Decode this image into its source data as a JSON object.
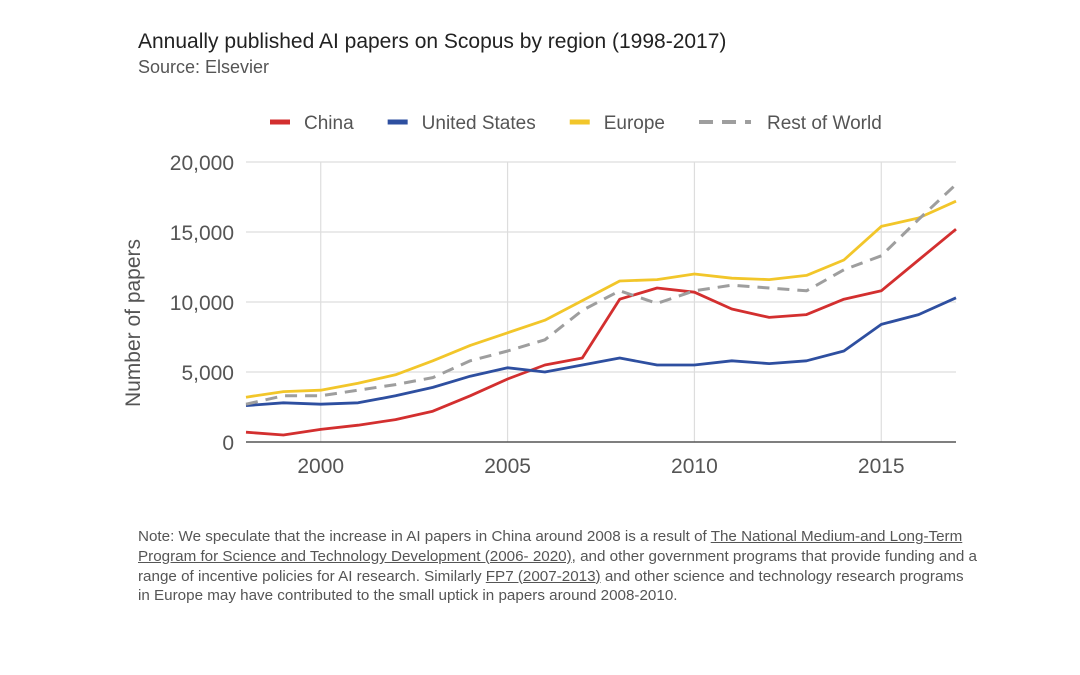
{
  "header": {
    "title": "Annually published AI papers on Scopus by region (1998-2017)",
    "source": "Source: Elsevier"
  },
  "chart_data": {
    "type": "line",
    "title": "Annually published AI papers on Scopus by region (1998-2017)",
    "subtitle": "Source: Elsevier",
    "xlabel": "",
    "ylabel": "Number of papers",
    "x": [
      1998,
      1999,
      2000,
      2001,
      2002,
      2003,
      2004,
      2005,
      2006,
      2007,
      2008,
      2009,
      2010,
      2011,
      2012,
      2013,
      2014,
      2015,
      2016,
      2017
    ],
    "xlim": [
      1998,
      2017
    ],
    "ylim": [
      0,
      20000
    ],
    "xticks": [
      2000,
      2005,
      2010,
      2015
    ],
    "xtick_labels": [
      "2000",
      "2005",
      "2010",
      "2015"
    ],
    "yticks": [
      0,
      5000,
      10000,
      15000,
      20000
    ],
    "ytick_labels": [
      "0",
      "5,000",
      "10,000",
      "15,000",
      "20,000"
    ],
    "grid": true,
    "legend_position": "top",
    "series": [
      {
        "name": "China",
        "color": "#d32f2f",
        "dash": "solid",
        "values": [
          700,
          500,
          900,
          1200,
          1600,
          2200,
          3300,
          4500,
          5500,
          6000,
          10200,
          11000,
          10700,
          9500,
          8900,
          9100,
          10200,
          10800,
          13000,
          15200
        ]
      },
      {
        "name": "United States",
        "color": "#2e4fa0",
        "dash": "solid",
        "values": [
          2600,
          2800,
          2700,
          2800,
          3300,
          3900,
          4700,
          5300,
          5000,
          5500,
          6000,
          5500,
          5500,
          5800,
          5600,
          5800,
          6500,
          8400,
          9100,
          10300
        ]
      },
      {
        "name": "Europe",
        "color": "#f2c62a",
        "dash": "solid",
        "values": [
          3200,
          3600,
          3700,
          4200,
          4800,
          5800,
          6900,
          7800,
          8700,
          10100,
          11500,
          11600,
          12000,
          11700,
          11600,
          11900,
          13000,
          15400,
          16000,
          17200
        ]
      },
      {
        "name": "Rest of World",
        "color": "#9e9e9e",
        "dash": "dashed",
        "values": [
          2700,
          3300,
          3300,
          3700,
          4100,
          4600,
          5800,
          6500,
          7300,
          9400,
          10800,
          9900,
          10800,
          11200,
          11000,
          10800,
          12300,
          13300,
          15900,
          18400
        ]
      }
    ]
  },
  "note": {
    "pre": "Note: We speculate that the increase in AI papers in China around 2008 is a result of ",
    "link1": "The National Medium-and Long-Term Program for Science and Technology Development (2006- 2020)",
    "mid": ", and other government programs that provide funding and a range of incentive policies for AI research. Similarly ",
    "link2": "FP7 (2007-2013)",
    "post": " and other science and technology research programs in Europe may have contributed to the small uptick in papers around 2008-2010."
  }
}
